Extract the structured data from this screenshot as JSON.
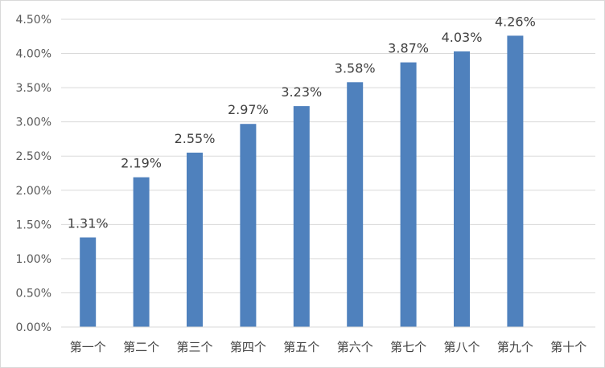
{
  "chart_data": {
    "type": "bar",
    "categories": [
      "第一个",
      "第二个",
      "第三个",
      "第四个",
      "第五个",
      "第六个",
      "第七个",
      "第八个",
      "第九个",
      "第十个"
    ],
    "values": [
      1.31,
      2.19,
      2.55,
      2.97,
      3.23,
      3.58,
      3.87,
      4.03,
      4.26,
      null
    ],
    "data_labels": [
      "1.31%",
      "2.19%",
      "2.55%",
      "2.97%",
      "3.23%",
      "3.58%",
      "3.87%",
      "4.03%",
      "4.26%",
      ""
    ],
    "y_ticks": [
      "0.00%",
      "0.50%",
      "1.00%",
      "1.50%",
      "2.00%",
      "2.50%",
      "3.00%",
      "3.50%",
      "4.00%",
      "4.50%"
    ],
    "ylim": [
      0,
      4.5
    ],
    "y_unit": "%",
    "grid": true,
    "legend": "none",
    "bar_color": "#4f81bd",
    "grid_color": "#d9d9d9",
    "title": "",
    "xlabel": "",
    "ylabel": ""
  }
}
